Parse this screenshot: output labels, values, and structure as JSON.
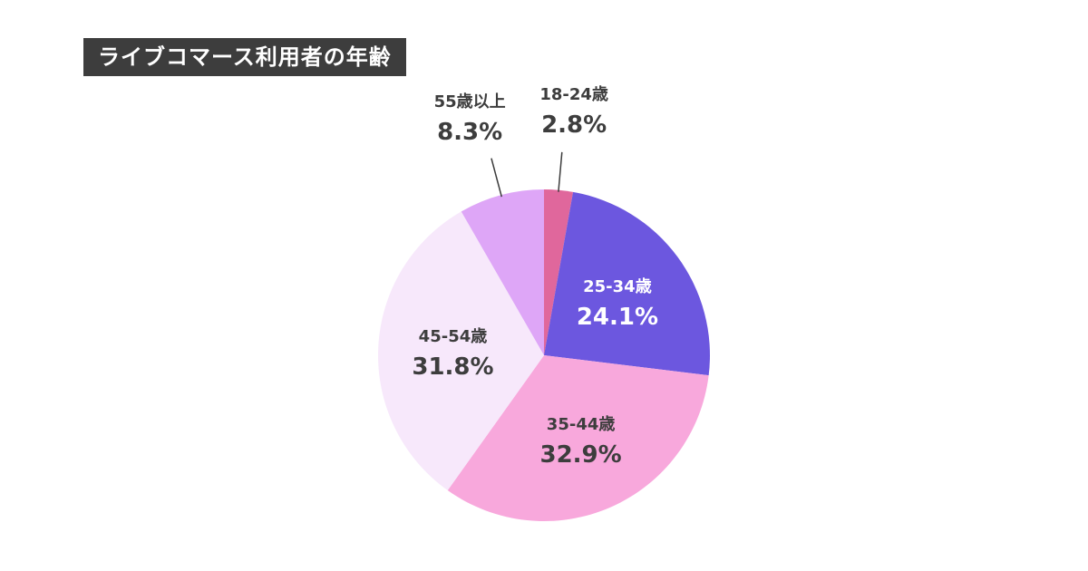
{
  "title": "ライブコマース利用者の年齢",
  "chart_data": {
    "type": "pie",
    "title": "ライブコマース利用者の年齢",
    "slices": [
      {
        "label": "18-24歳",
        "value": 2.8,
        "value_label": "2.8%",
        "color": "#e0679c",
        "label_color": "#3d3d3d",
        "callout": true
      },
      {
        "label": "25-34歳",
        "value": 24.1,
        "value_label": "24.1%",
        "color": "#6c57df",
        "label_color": "#ffffff",
        "callout": false
      },
      {
        "label": "35-44歳",
        "value": 32.9,
        "value_label": "32.9%",
        "color": "#f8a8dc",
        "label_color": "#3d3d3d",
        "callout": false
      },
      {
        "label": "45-54歳",
        "value": 31.8,
        "value_label": "31.8%",
        "color": "#f7e8fb",
        "label_color": "#3d3d3d",
        "callout": false
      },
      {
        "label": "55歳以上",
        "value": 8.3,
        "value_label": "8.3%",
        "color": "#dea6f7",
        "label_color": "#3d3d3d",
        "callout": true
      }
    ],
    "start_angle": "top",
    "direction": "clockwise"
  }
}
